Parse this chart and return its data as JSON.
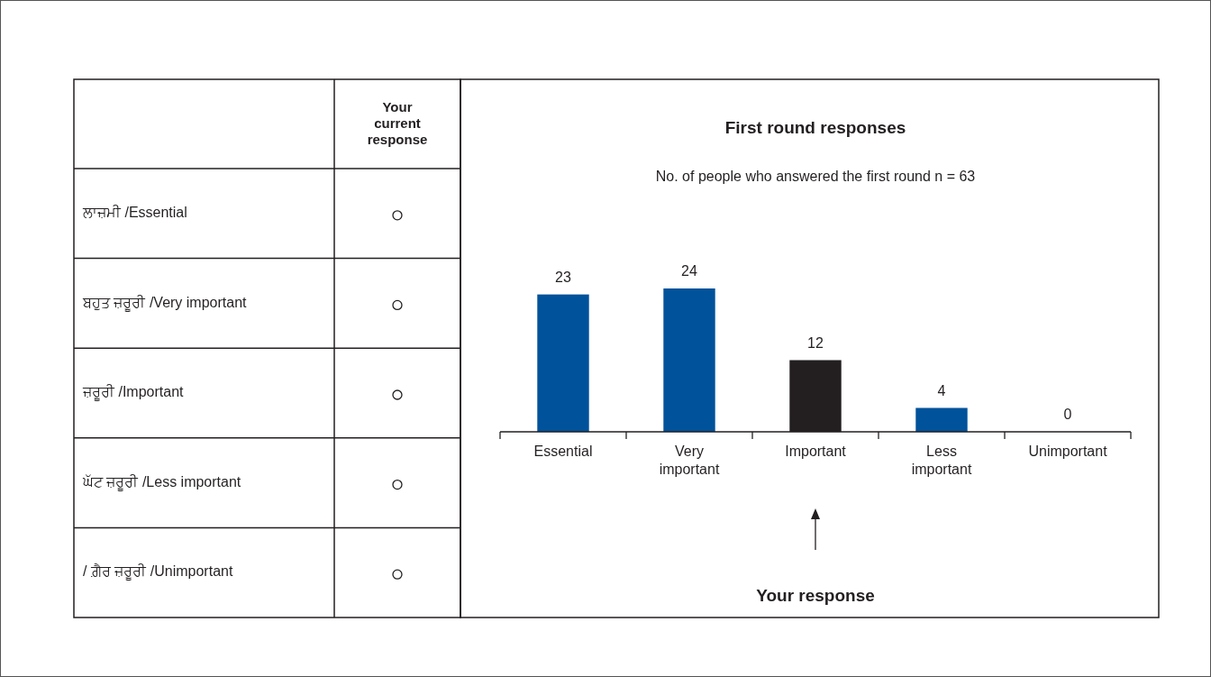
{
  "chart_data": [
    {
      "type": "other",
      "annotations": [
        "Your current response",
        "ਲਾਜ਼ਮੀ /Essential",
        "ਬਹੁਤ ਜ਼ਰੂਰੀ /Very important",
        "ਜ਼ਰੂਰੀ /Important",
        "ਘੱਟ ਜ਼ਰੂਰੀ /Less important",
        "/ ਗ਼ੈਰ ਜ਼ਰੂਰੀ /Unimportant"
      ]
    },
    {
      "type": "bar",
      "title": "First round responses",
      "subtitle": "No. of people who answered the first round  n = 63",
      "categories": [
        "Essential",
        "Very important",
        "Important",
        "Less important",
        "Unimportant"
      ],
      "values": [
        23,
        24,
        12,
        4,
        0
      ],
      "colors": [
        "#00529b",
        "#00529b",
        "#231f20",
        "#00529b",
        "#00529b"
      ],
      "relative": false,
      "data_labels": true,
      "annotations": [
        "Your response"
      ]
    }
  ]
}
